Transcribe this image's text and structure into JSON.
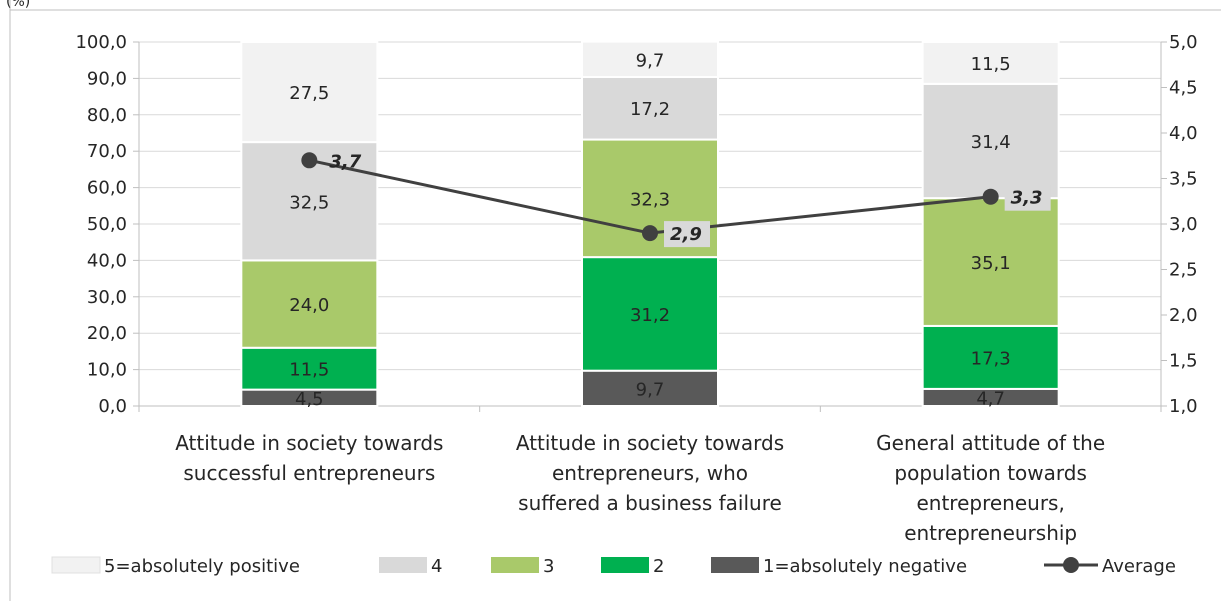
{
  "chart_data": {
    "type": "bar",
    "stacked": true,
    "unit_label": "(%)",
    "categories": [
      [
        "Attitude in society towards",
        "successful entrepreneurs"
      ],
      [
        "Attitude in society towards",
        "entrepreneurs, who",
        "suffered a business failure"
      ],
      [
        "General attitude of the",
        "population towards",
        "entrepreneurs,",
        "entrepreneurship"
      ]
    ],
    "series": [
      {
        "name": "1=absolutely negative",
        "color": "#595959",
        "values": [
          4.5,
          9.7,
          4.7
        ]
      },
      {
        "name": "2",
        "color": "#00B050",
        "values": [
          11.5,
          31.2,
          17.3
        ]
      },
      {
        "name": "3",
        "color": "#A9C96A",
        "values": [
          24.0,
          32.3,
          35.1
        ]
      },
      {
        "name": "4",
        "color": "#D9D9D9",
        "values": [
          32.5,
          17.2,
          31.4
        ]
      },
      {
        "name": "5=absolutely positive",
        "color": "#F2F2F2",
        "values": [
          27.5,
          9.7,
          11.5
        ]
      }
    ],
    "data_labels": [
      [
        "4,5",
        "11,5",
        "24,0",
        "32,5",
        "27,5"
      ],
      [
        "9,7",
        "31,2",
        "32,3",
        "17,2",
        "9,7"
      ],
      [
        "4,7",
        "17,3",
        "35,1",
        "31,4",
        "11,5"
      ]
    ],
    "line_series": {
      "name": "Average",
      "color": "#404040",
      "values": [
        3.7,
        2.9,
        3.3
      ],
      "labels": [
        "3,7",
        "2,9",
        "3,3"
      ],
      "axis": "secondary"
    },
    "y_axis": {
      "min": 0,
      "max": 100,
      "step": 10,
      "ticks": [
        "0,0",
        "10,0",
        "20,0",
        "30,0",
        "40,0",
        "50,0",
        "60,0",
        "70,0",
        "80,0",
        "90,0",
        "100,0"
      ]
    },
    "y2_axis": {
      "min": 1.0,
      "max": 5.0,
      "step": 0.5,
      "ticks": [
        "1,0",
        "1,5",
        "2,0",
        "2,5",
        "3,0",
        "3,5",
        "4,0",
        "4,5",
        "5,0"
      ]
    },
    "legend": {
      "position": "bottom",
      "items": [
        {
          "label": "5=absolutely positive",
          "color": "#F2F2F2",
          "kind": "box"
        },
        {
          "label": "4",
          "color": "#D9D9D9",
          "kind": "box"
        },
        {
          "label": "3",
          "color": "#A9C96A",
          "kind": "box"
        },
        {
          "label": "2",
          "color": "#00B050",
          "kind": "box"
        },
        {
          "label": "1=absolutely negative",
          "color": "#595959",
          "kind": "box"
        },
        {
          "label": "Average",
          "color": "#404040",
          "kind": "line"
        }
      ]
    },
    "gridlines": true
  }
}
